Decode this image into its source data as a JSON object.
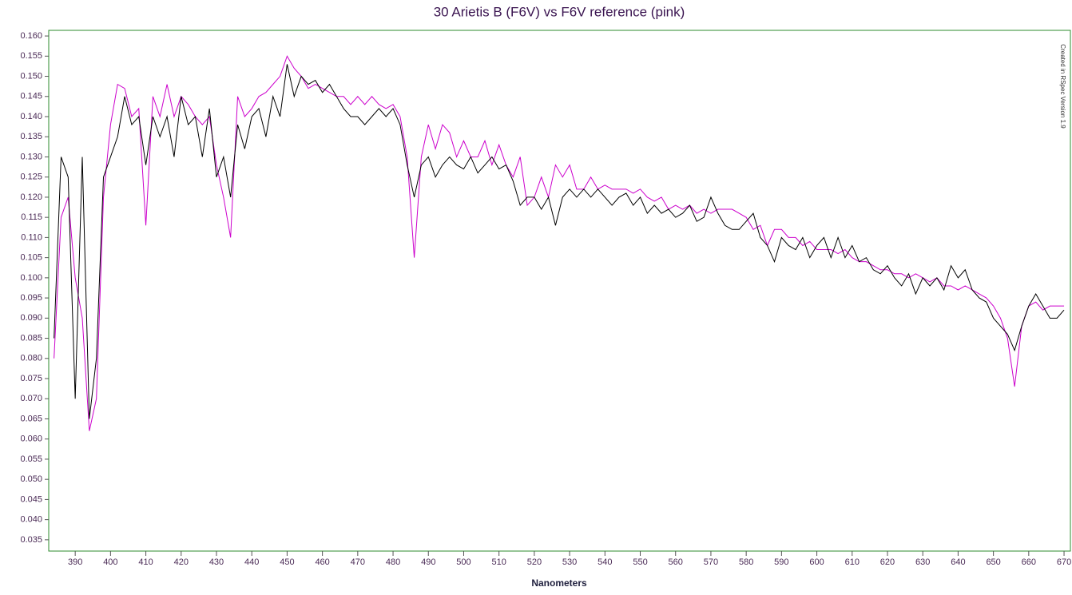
{
  "chart_data": {
    "type": "line",
    "title": "30 Arietis B (F6V) vs F6V reference (pink)",
    "x_label": "Nanometers",
    "annotation": "Created in RSpec Version 1.9",
    "xlim": [
      382.5,
      671.8
    ],
    "ylim": [
      0.0322,
      0.1614
    ],
    "xticks": [
      390,
      400,
      410,
      420,
      430,
      440,
      450,
      460,
      470,
      480,
      490,
      500,
      510,
      520,
      530,
      540,
      550,
      560,
      570,
      580,
      590,
      600,
      610,
      620,
      630,
      640,
      650,
      660,
      670
    ],
    "yticks": [
      {
        "value": 0.035,
        "label": "0.035"
      },
      {
        "value": 0.04,
        "label": "0.040"
      },
      {
        "value": 0.045,
        "label": "0.045"
      },
      {
        "value": 0.05,
        "label": "0.050"
      },
      {
        "value": 0.055,
        "label": "0.055"
      },
      {
        "value": 0.06,
        "label": "0.060"
      },
      {
        "value": 0.065,
        "label": "0.065"
      },
      {
        "value": 0.07,
        "label": "0.070"
      },
      {
        "value": 0.075,
        "label": "0.075"
      },
      {
        "value": 0.08,
        "label": "0.080"
      },
      {
        "value": 0.085,
        "label": "0.085"
      },
      {
        "value": 0.09,
        "label": "0.090"
      },
      {
        "value": 0.095,
        "label": "0.095"
      },
      {
        "value": 0.1,
        "label": "0.100"
      },
      {
        "value": 0.105,
        "label": "0.105"
      },
      {
        "value": 0.11,
        "label": "0.110"
      },
      {
        "value": 0.115,
        "label": "0.115"
      },
      {
        "value": 0.12,
        "label": "0.120"
      },
      {
        "value": 0.125,
        "label": "0.125"
      },
      {
        "value": 0.13,
        "label": "0.130"
      },
      {
        "value": 0.135,
        "label": "0.135"
      },
      {
        "value": 0.14,
        "label": "0.140"
      },
      {
        "value": 0.145,
        "label": "0.145"
      },
      {
        "value": 0.15,
        "label": "0.150"
      },
      {
        "value": 0.155,
        "label": "0.155"
      },
      {
        "value": 0.16,
        "label": "0.160"
      }
    ],
    "grid": false,
    "x": [
      384,
      386,
      388,
      390,
      392,
      394,
      396,
      398,
      400,
      402,
      404,
      406,
      408,
      410,
      412,
      414,
      416,
      418,
      420,
      422,
      424,
      426,
      428,
      430,
      432,
      434,
      436,
      438,
      440,
      442,
      444,
      446,
      448,
      450,
      452,
      454,
      456,
      458,
      460,
      462,
      464,
      466,
      468,
      470,
      472,
      474,
      476,
      478,
      480,
      482,
      484,
      486,
      488,
      490,
      492,
      494,
      496,
      498,
      500,
      502,
      504,
      506,
      508,
      510,
      512,
      514,
      516,
      518,
      520,
      522,
      524,
      526,
      528,
      530,
      532,
      534,
      536,
      538,
      540,
      542,
      544,
      546,
      548,
      550,
      552,
      554,
      556,
      558,
      560,
      562,
      564,
      566,
      568,
      570,
      572,
      574,
      576,
      578,
      580,
      582,
      584,
      586,
      588,
      590,
      592,
      594,
      596,
      598,
      600,
      602,
      604,
      606,
      608,
      610,
      612,
      614,
      616,
      618,
      620,
      622,
      624,
      626,
      628,
      630,
      632,
      634,
      636,
      638,
      640,
      642,
      644,
      646,
      648,
      650,
      652,
      654,
      656,
      658,
      660,
      662,
      664,
      666,
      668,
      670
    ],
    "series": [
      {
        "color": "#cc00cc",
        "values": [
          0.08,
          0.115,
          0.12,
          0.1,
          0.09,
          0.062,
          0.07,
          0.12,
          0.138,
          0.148,
          0.147,
          0.14,
          0.142,
          0.113,
          0.145,
          0.14,
          0.148,
          0.14,
          0.145,
          0.143,
          0.14,
          0.138,
          0.14,
          0.128,
          0.12,
          0.11,
          0.145,
          0.14,
          0.142,
          0.145,
          0.146,
          0.148,
          0.15,
          0.155,
          0.152,
          0.15,
          0.147,
          0.148,
          0.147,
          0.146,
          0.145,
          0.145,
          0.143,
          0.145,
          0.143,
          0.145,
          0.143,
          0.142,
          0.143,
          0.14,
          0.13,
          0.105,
          0.13,
          0.138,
          0.132,
          0.138,
          0.136,
          0.13,
          0.134,
          0.13,
          0.13,
          0.134,
          0.128,
          0.133,
          0.128,
          0.125,
          0.13,
          0.118,
          0.12,
          0.125,
          0.12,
          0.128,
          0.125,
          0.128,
          0.122,
          0.122,
          0.125,
          0.122,
          0.123,
          0.122,
          0.122,
          0.122,
          0.121,
          0.122,
          0.12,
          0.119,
          0.12,
          0.117,
          0.118,
          0.117,
          0.118,
          0.116,
          0.117,
          0.116,
          0.117,
          0.117,
          0.117,
          0.116,
          0.115,
          0.112,
          0.113,
          0.108,
          0.112,
          0.112,
          0.11,
          0.11,
          0.108,
          0.109,
          0.107,
          0.107,
          0.107,
          0.106,
          0.107,
          0.105,
          0.104,
          0.104,
          0.103,
          0.102,
          0.102,
          0.101,
          0.101,
          0.1,
          0.101,
          0.1,
          0.099,
          0.1,
          0.098,
          0.098,
          0.097,
          0.098,
          0.097,
          0.096,
          0.095,
          0.093,
          0.09,
          0.085,
          0.073,
          0.088,
          0.093,
          0.094,
          0.092,
          0.093,
          0.093,
          0.093
        ]
      },
      {
        "color": "#000000",
        "values": [
          0.085,
          0.13,
          0.125,
          0.07,
          0.13,
          0.065,
          0.08,
          0.125,
          0.13,
          0.135,
          0.145,
          0.138,
          0.14,
          0.128,
          0.14,
          0.135,
          0.14,
          0.13,
          0.145,
          0.138,
          0.14,
          0.13,
          0.142,
          0.125,
          0.13,
          0.12,
          0.138,
          0.132,
          0.14,
          0.142,
          0.135,
          0.145,
          0.14,
          0.153,
          0.145,
          0.15,
          0.148,
          0.149,
          0.146,
          0.148,
          0.145,
          0.142,
          0.14,
          0.14,
          0.138,
          0.14,
          0.142,
          0.14,
          0.142,
          0.138,
          0.128,
          0.12,
          0.128,
          0.13,
          0.125,
          0.128,
          0.13,
          0.128,
          0.127,
          0.13,
          0.126,
          0.128,
          0.13,
          0.127,
          0.128,
          0.124,
          0.118,
          0.12,
          0.12,
          0.117,
          0.12,
          0.113,
          0.12,
          0.122,
          0.12,
          0.122,
          0.12,
          0.122,
          0.12,
          0.118,
          0.12,
          0.121,
          0.118,
          0.12,
          0.116,
          0.118,
          0.116,
          0.117,
          0.115,
          0.116,
          0.118,
          0.114,
          0.115,
          0.12,
          0.116,
          0.113,
          0.112,
          0.112,
          0.114,
          0.116,
          0.11,
          0.108,
          0.104,
          0.11,
          0.108,
          0.107,
          0.11,
          0.105,
          0.108,
          0.11,
          0.105,
          0.11,
          0.105,
          0.108,
          0.104,
          0.105,
          0.102,
          0.101,
          0.103,
          0.1,
          0.098,
          0.101,
          0.096,
          0.1,
          0.098,
          0.1,
          0.097,
          0.103,
          0.1,
          0.102,
          0.097,
          0.095,
          0.094,
          0.09,
          0.088,
          0.086,
          0.082,
          0.088,
          0.093,
          0.096,
          0.093,
          0.09,
          0.09,
          0.092
        ]
      }
    ]
  }
}
